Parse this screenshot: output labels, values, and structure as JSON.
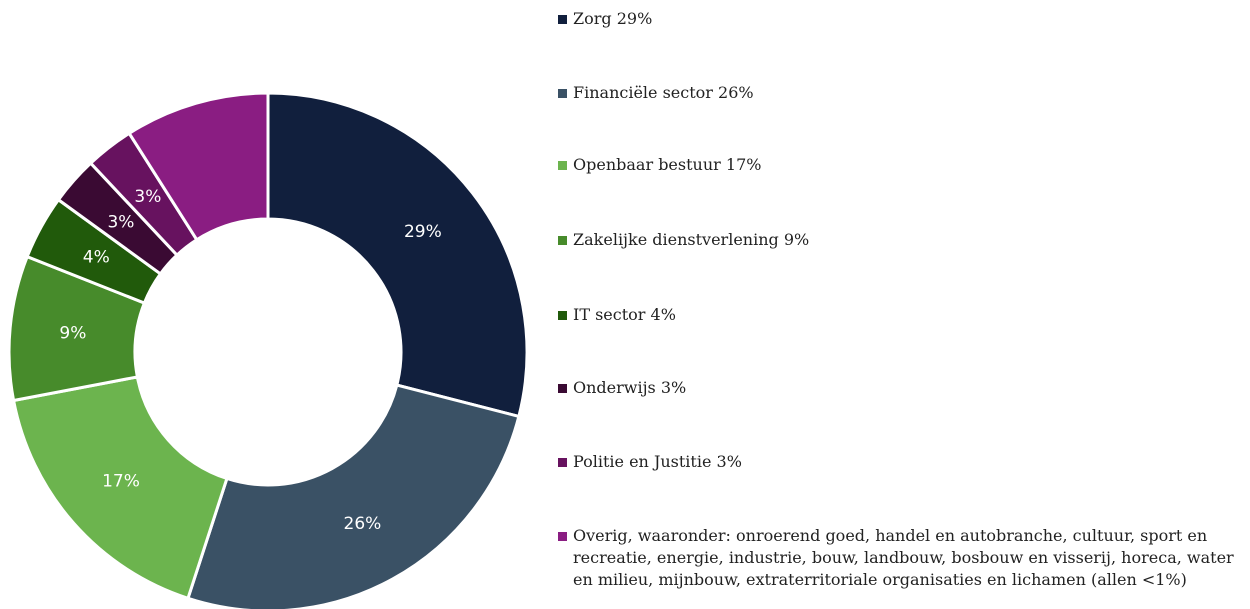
{
  "chart_data": {
    "type": "donut",
    "slices": [
      {
        "label": "Zorg 29%",
        "value": 29,
        "data_label": "29%",
        "color": "#111f3d"
      },
      {
        "label": "Financiële sector 26%",
        "value": 26,
        "data_label": "26%",
        "color": "#3a5165"
      },
      {
        "label": "Openbaar bestuur 17%",
        "value": 17,
        "data_label": "17%",
        "color": "#6cb44e"
      },
      {
        "label": "Zakelijke dienstverlening 9%",
        "value": 9,
        "data_label": "9%",
        "color": "#478b2b"
      },
      {
        "label": "IT sector 4%",
        "value": 4,
        "data_label": "4%",
        "color": "#215a0b"
      },
      {
        "label": "Onderwijs 3%",
        "value": 3,
        "data_label": "3%",
        "color": "#3a0a33"
      },
      {
        "label": "Politie en Justitie 3%",
        "value": 3,
        "data_label": "3%",
        "color": "#67125f"
      },
      {
        "label": "Overig, waaronder: onroerend goed, handel en autobranche, cultuur, sport en recreatie, energie, industrie, bouw, landbouw, bosbouw en visserij, horeca, water en milieu, mijnbouw, extraterritoriale organisaties en lichamen (allen <1%)",
        "value": 9,
        "data_label": "",
        "color": "#8a1d82"
      }
    ],
    "legend_position": "right"
  }
}
